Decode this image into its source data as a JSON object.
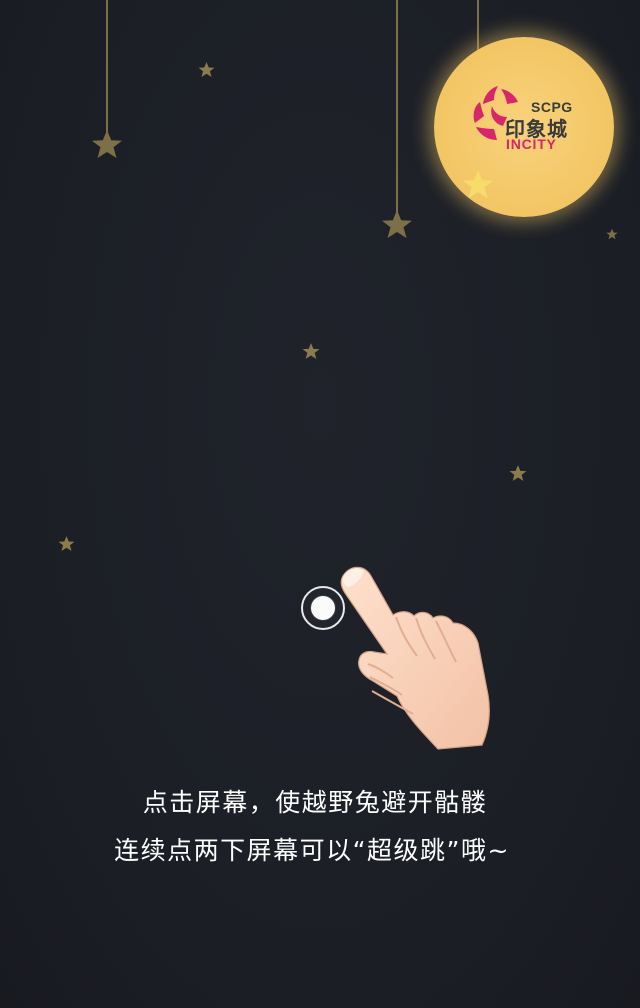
{
  "brand": {
    "top_text": "SCPG",
    "chinese_text": "印象城",
    "english_text": "INCITY"
  },
  "instructions": {
    "line1": "点击屏幕，使越野兔避开骷髅",
    "line2": "连续点两下屏幕可以“超级跳”哦~"
  },
  "colors": {
    "background": "#1d2028",
    "moon": "#f3c766",
    "brand_red": "#d8266b",
    "star": "#7d6f46"
  },
  "icons": {
    "moon": "moon-icon",
    "logo": "incity-logo-icon",
    "hand": "pointing-hand-icon",
    "tap": "tap-target-icon",
    "star": "star-icon"
  }
}
